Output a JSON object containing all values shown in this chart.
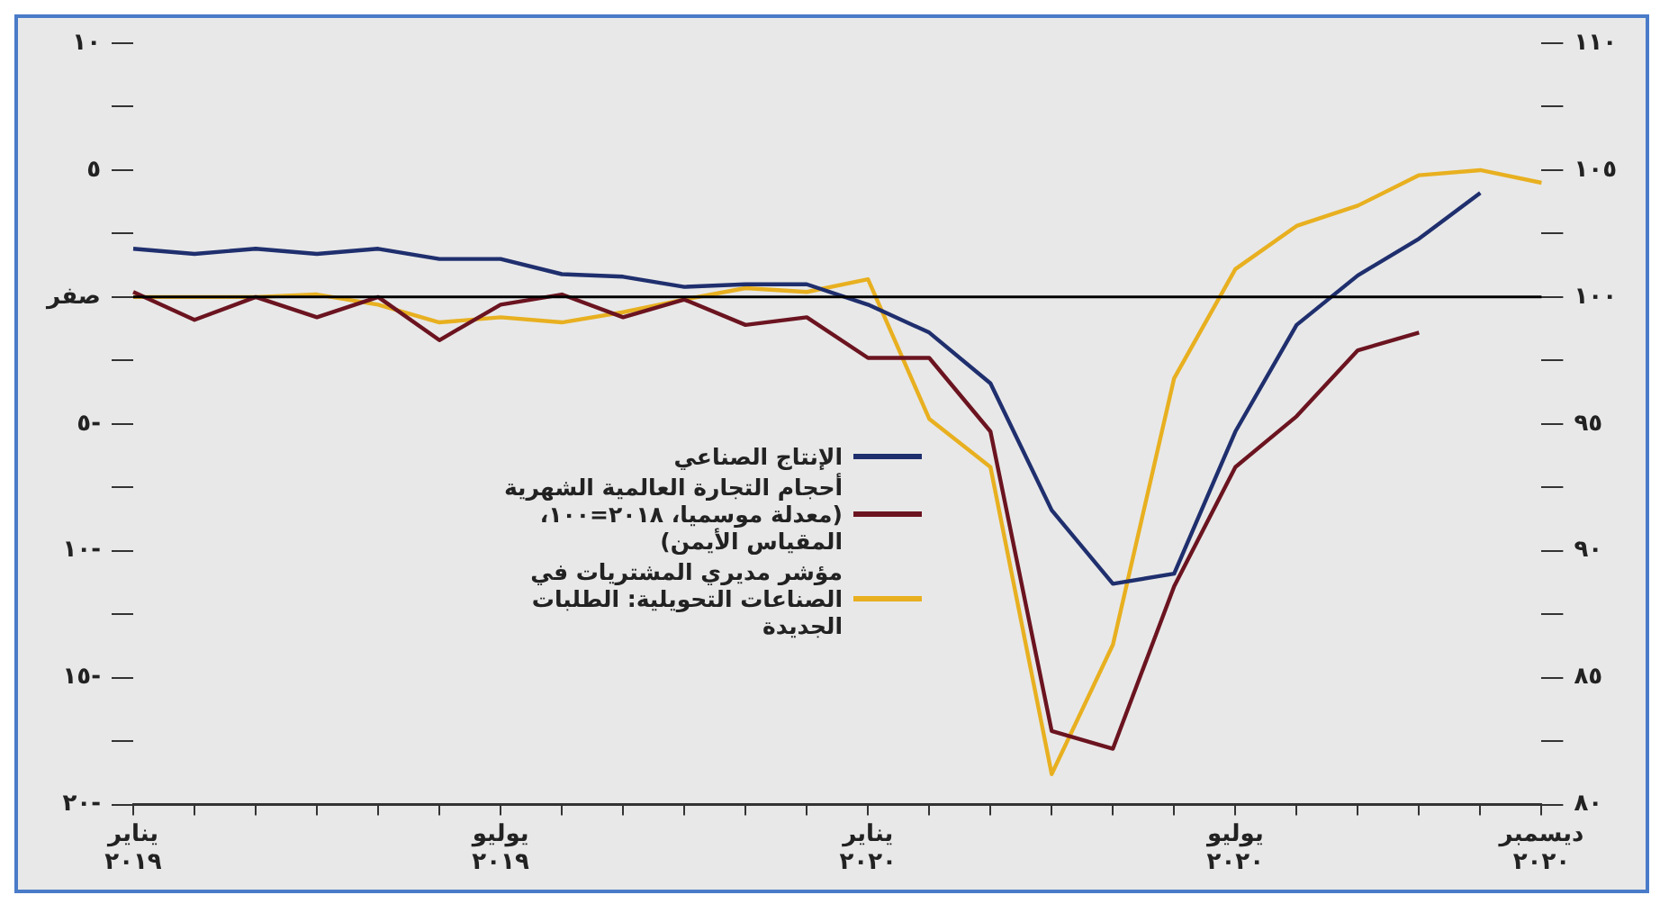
{
  "chart_data": {
    "type": "line",
    "categories": [
      "يناير ٢٠١٩",
      null,
      null,
      null,
      null,
      null,
      "يوليو ٢٠١٩",
      null,
      null,
      null,
      null,
      null,
      "يناير ٢٠٢٠",
      null,
      null,
      null,
      null,
      null,
      "يوليو ٢٠٢٠",
      null,
      null,
      null,
      null,
      "ديسمبر ٢٠٢٠"
    ],
    "series": [
      {
        "name": "الإنتاج الصناعي",
        "color": "#1f2f6e",
        "values": [
          1.9,
          1.7,
          1.9,
          1.7,
          1.9,
          1.5,
          1.5,
          0.9,
          0.8,
          0.4,
          0.5,
          0.5,
          -0.3,
          -1.4,
          -3.4,
          -8.4,
          -11.3,
          -10.9,
          -5.3,
          -1.1,
          0.85,
          2.3,
          4.1,
          null
        ]
      },
      {
        "name": "أحجام التجارة العالمية الشهرية (معدلة موسميا، ٢٠١٨=١٠٠، المقياس الأيمن)",
        "color": "#6b1420",
        "axis": "y2",
        "values": [
          100.2,
          99.1,
          100,
          99.2,
          100,
          98.3,
          99.7,
          100.1,
          99.2,
          99.9,
          98.9,
          99.2,
          97.6,
          97.6,
          94.7,
          82.9,
          82.2,
          88.6,
          93.3,
          95.3,
          97.9,
          98.6,
          null,
          null
        ]
      },
      {
        "name": "مؤشر مديري المشتريات في الصناعات التحويلية: الطلبات الجديدة",
        "color": "#e8b020",
        "values": [
          0,
          0,
          0,
          0.1,
          -0.3,
          -1.0,
          -0.8,
          -1.0,
          -0.6,
          -0.1,
          0.35,
          0.2,
          0.7,
          -4.8,
          -6.7,
          -18.8,
          -13.7,
          -3.2,
          1.1,
          2.8,
          3.6,
          4.8,
          5.0,
          4.5
        ]
      }
    ],
    "ylim": [
      -20,
      10
    ],
    "yticks": [
      {
        "value": -20,
        "label": "٢٠-"
      },
      {
        "value": -17.5,
        "label": null
      },
      {
        "value": -15,
        "label": "١٥-"
      },
      {
        "value": -12.5,
        "label": null
      },
      {
        "value": -10,
        "label": "١٠-"
      },
      {
        "value": -7.5,
        "label": null
      },
      {
        "value": -5,
        "label": "٥-"
      },
      {
        "value": -2.5,
        "label": null
      },
      {
        "value": 0,
        "label": "صفر"
      },
      {
        "value": 2.5,
        "label": null
      },
      {
        "value": 5,
        "label": "٥"
      },
      {
        "value": 7.5,
        "label": null
      },
      {
        "value": 10,
        "label": "١٠"
      }
    ],
    "y2lim": [
      80,
      110
    ],
    "y2ticks": [
      {
        "value": 80,
        "label": "٨٠"
      },
      {
        "value": 82.5,
        "label": null
      },
      {
        "value": 85,
        "label": "٨٥"
      },
      {
        "value": 87.5,
        "label": null
      },
      {
        "value": 90,
        "label": "٩٠"
      },
      {
        "value": 92.5,
        "label": null
      },
      {
        "value": 95,
        "label": "٩٥"
      },
      {
        "value": 97.5,
        "label": null
      },
      {
        "value": 100,
        "label": "١٠٠"
      },
      {
        "value": 102.5,
        "label": null
      },
      {
        "value": 105,
        "label": "١٠٥"
      },
      {
        "value": 107.5,
        "label": null
      },
      {
        "value": 110,
        "label": "١١٠"
      }
    ],
    "ref_lines": [
      {
        "axis": "y",
        "value": 0,
        "color": "#000000"
      }
    ],
    "grid": false,
    "legend": "center",
    "marker": "none",
    "line_style": "solid"
  }
}
